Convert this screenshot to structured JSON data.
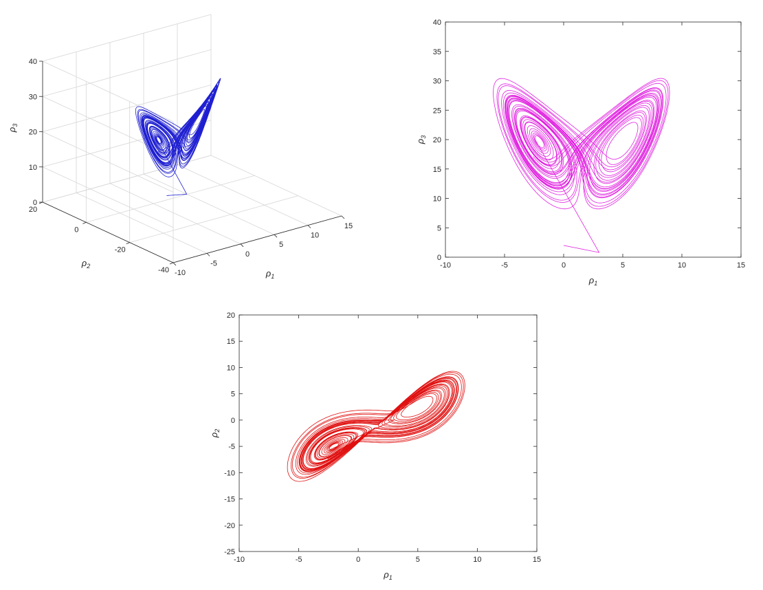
{
  "chart_data": [
    {
      "id": "plot3d",
      "type": "line",
      "projection": "3d",
      "xlabel": "ρ1",
      "ylabel": "ρ2",
      "zlabel": "ρ3",
      "xlim": [
        -10,
        15
      ],
      "ylim": [
        -40,
        20
      ],
      "zlim": [
        0,
        40
      ],
      "xticks": [
        -10,
        -5,
        0,
        5,
        10,
        15
      ],
      "yticks": [
        -40,
        -20,
        0,
        20
      ],
      "zticks": [
        0,
        10,
        20,
        30,
        40
      ],
      "grid": true,
      "color": "#1f1fd1"
    },
    {
      "id": "plot13",
      "type": "line",
      "xlabel": "ρ1",
      "ylabel": "ρ3",
      "xlim": [
        -10,
        15
      ],
      "ylim": [
        0,
        40
      ],
      "xticks": [
        -10,
        -5,
        0,
        5,
        10,
        15
      ],
      "yticks": [
        0,
        5,
        10,
        15,
        20,
        25,
        30,
        35,
        40
      ],
      "grid": false,
      "color": "#e020e0"
    },
    {
      "id": "plot12",
      "type": "line",
      "xlabel": "ρ1",
      "ylabel": "ρ2",
      "xlim": [
        -10,
        15
      ],
      "ylim": [
        -25,
        20
      ],
      "xticks": [
        -10,
        -5,
        0,
        5,
        10,
        15
      ],
      "yticks": [
        -25,
        -20,
        -15,
        -10,
        -5,
        0,
        5,
        10,
        15,
        20
      ],
      "grid": false,
      "color": "#e01010"
    }
  ]
}
